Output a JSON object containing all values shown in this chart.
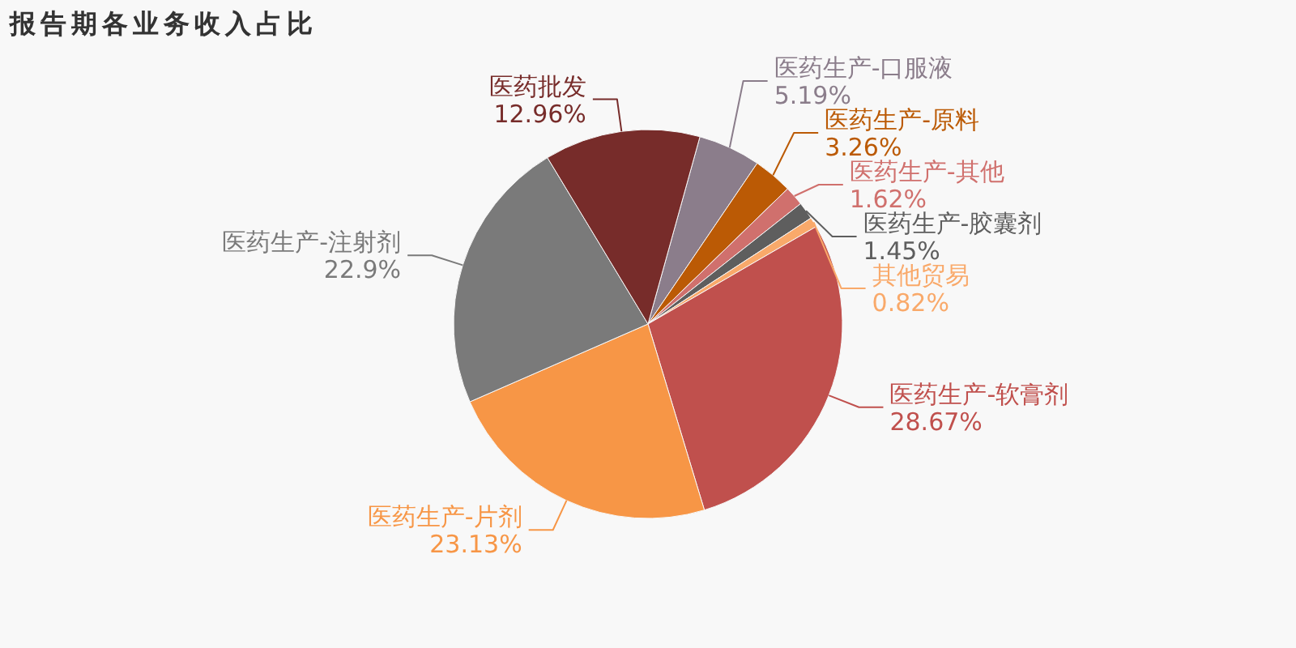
{
  "chart_data": {
    "type": "pie",
    "title": "报告期各业务收入占比",
    "categories": [
      "医药生产-口服液",
      "医药生产-原料",
      "医药生产-其他",
      "医药生产-胶囊剂",
      "其他贸易",
      "医药生产-软膏剂",
      "医药生产-片剂",
      "医药生产-注射剂",
      "医药批发"
    ],
    "values": [
      5.19,
      3.26,
      1.62,
      1.45,
      0.82,
      28.67,
      23.13,
      22.9,
      12.96
    ],
    "value_labels": [
      "5.19%",
      "3.26%",
      "1.62%",
      "1.45%",
      "0.82%",
      "28.67%",
      "23.13%",
      "22.9%",
      "12.96%"
    ],
    "colors": [
      "#8b7d8b",
      "#bb5a05",
      "#d0706d",
      "#5e5e5e",
      "#f9a96a",
      "#c0504d",
      "#f79646",
      "#7a7a7a",
      "#772c2a"
    ]
  }
}
